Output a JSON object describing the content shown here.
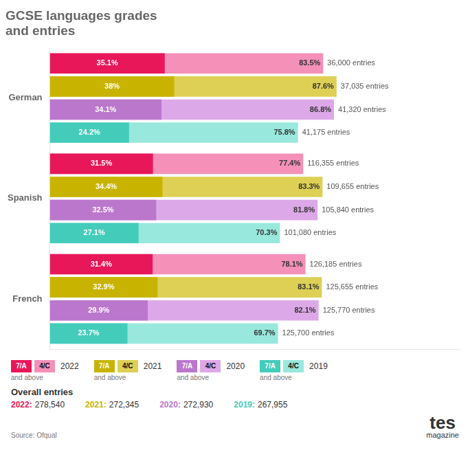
{
  "chart_data": {
    "type": "bar",
    "orientation": "horizontal",
    "title": [
      "GCSE languages grades",
      "and entries"
    ],
    "categories": [
      "German",
      "Spanish",
      "French"
    ],
    "series": [
      {
        "name": "2022",
        "grades": [
          {
            "name": "7/A",
            "color": "#e8175a",
            "values": [
              35.1,
              31.5,
              31.4
            ],
            "value_labels": [
              "35.1%",
              "31.5%",
              "31.4%"
            ]
          },
          {
            "name": "4/C",
            "color": "#f590b8",
            "values": [
              83.5,
              77.4,
              78.1
            ],
            "value_labels": [
              "83.5%",
              "77.4%",
              "78.1%"
            ]
          }
        ],
        "entries": [
          "36,000 entries",
          "116,355 entries",
          "126,185 entries"
        ]
      },
      {
        "name": "2021",
        "grades": [
          {
            "name": "7/A",
            "color": "#c8b400",
            "values": [
              38.0,
              34.4,
              32.9
            ],
            "value_labels": [
              "38%",
              "34.4%",
              "32.9%"
            ]
          },
          {
            "name": "4/C",
            "color": "#ddd055",
            "values": [
              87.6,
              83.3,
              83.1
            ],
            "value_labels": [
              "87.6%",
              "83.3%",
              "83.1%"
            ]
          }
        ],
        "entries": [
          "37,035 entries",
          "109,655 entries",
          "125,655 entries"
        ]
      },
      {
        "name": "2020",
        "grades": [
          {
            "name": "7/A",
            "color": "#bb77cc",
            "values": [
              34.1,
              32.5,
              29.9
            ],
            "value_labels": [
              "34.1%",
              "32.5%",
              "29.9%"
            ]
          },
          {
            "name": "4/C",
            "color": "#dda8e8",
            "values": [
              86.8,
              81.8,
              82.1
            ],
            "value_labels": [
              "86.8%",
              "81.8%",
              "82.1%"
            ]
          }
        ],
        "entries": [
          "41,320 entries",
          "105,840 entries",
          "125,770 entries"
        ]
      },
      {
        "name": "2019",
        "grades": [
          {
            "name": "7/A",
            "color": "#44ccbb",
            "values": [
              24.2,
              27.1,
              23.7
            ],
            "value_labels": [
              "24.2%",
              "27.1%",
              "23.7%"
            ]
          },
          {
            "name": "4/C",
            "color": "#99e8dd",
            "values": [
              75.8,
              70.3,
              69.7
            ],
            "value_labels": [
              "75.8%",
              "70.3%",
              "69.7%"
            ]
          }
        ],
        "entries": [
          "41,175 entries",
          "101,080 entries",
          "125,700 entries"
        ]
      }
    ],
    "legend_note": "and above",
    "overall": {
      "title": "Overall entries",
      "items": [
        {
          "label": "2022:",
          "color": "#e8175a",
          "value": "278,540"
        },
        {
          "label": "2021:",
          "color": "#c8b400",
          "value": "272,345"
        },
        {
          "label": "2020:",
          "color": "#bb77cc",
          "value": "272,930"
        },
        {
          "label": "2019:",
          "color": "#44ccbb",
          "value": "267,955"
        }
      ]
    },
    "source": "Source: Ofqual",
    "logo": [
      "tes",
      "magazine"
    ],
    "xlim": [
      0,
      125
    ],
    "tick_labels": "y",
    "grid": false,
    "data_labels": true,
    "legend": "bottom"
  }
}
